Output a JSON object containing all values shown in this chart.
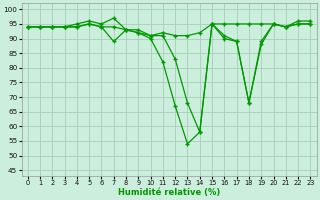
{
  "title": "",
  "xlabel": "Humidité relative (%)",
  "ylabel": "",
  "background_color": "#cceedd",
  "grid_color": "#aaccbb",
  "line_color": "#009900",
  "marker_color": "#009900",
  "xlim": [
    -0.5,
    23.5
  ],
  "ylim": [
    43,
    102
  ],
  "yticks": [
    45,
    50,
    55,
    60,
    65,
    70,
    75,
    80,
    85,
    90,
    95,
    100
  ],
  "xticks": [
    0,
    1,
    2,
    3,
    4,
    5,
    6,
    7,
    8,
    9,
    10,
    11,
    12,
    13,
    14,
    15,
    16,
    17,
    18,
    19,
    20,
    21,
    22,
    23
  ],
  "series": [
    [
      94,
      94,
      94,
      94,
      95,
      96,
      95,
      97,
      93,
      93,
      91,
      92,
      91,
      91,
      92,
      95,
      95,
      95,
      95,
      95,
      95,
      94,
      96,
      96
    ],
    [
      94,
      94,
      94,
      94,
      94,
      95,
      94,
      94,
      93,
      92,
      91,
      91,
      83,
      68,
      58,
      95,
      91,
      89,
      68,
      89,
      95,
      94,
      95,
      95
    ],
    [
      94,
      94,
      94,
      94,
      94,
      95,
      94,
      89,
      93,
      92,
      90,
      82,
      67,
      54,
      58,
      95,
      90,
      89,
      68,
      88,
      95,
      94,
      95,
      95
    ]
  ]
}
